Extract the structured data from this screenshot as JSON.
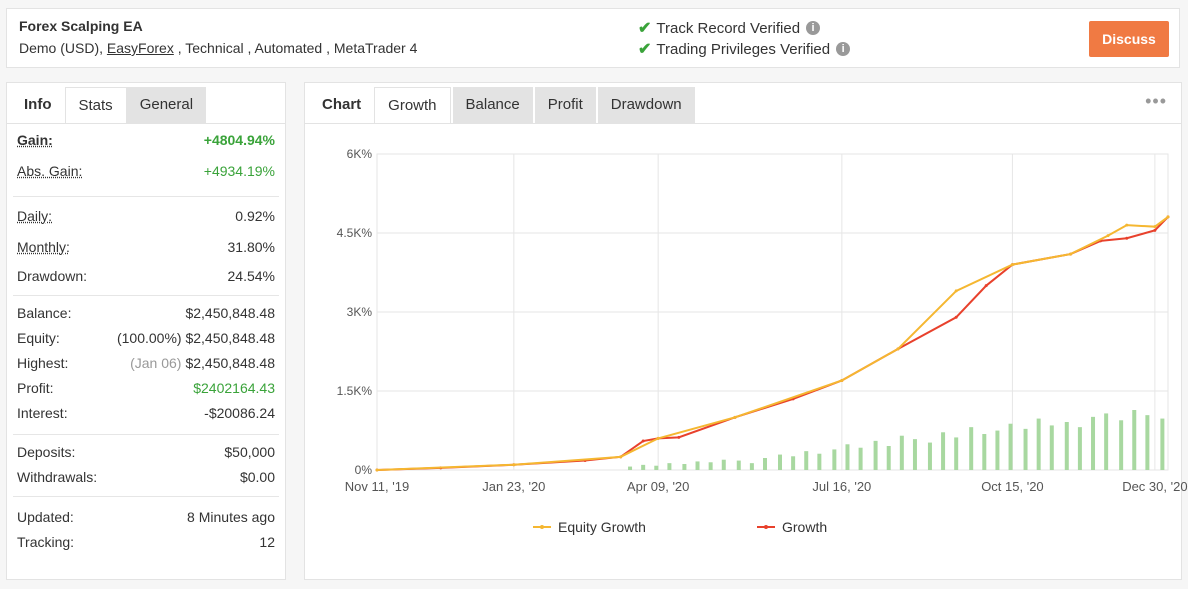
{
  "header": {
    "system_name": "Forex Scalping EA",
    "tags_prefix": "Demo (USD), ",
    "broker_link": "EasyForex",
    "tags_suffix": " , Technical , Automated , MetaTrader 4",
    "verifications": [
      {
        "label": "Track Record Verified",
        "icon": "check-icon"
      },
      {
        "label": "Trading Privileges Verified",
        "icon": "check-icon"
      }
    ],
    "discuss_label": "Discuss",
    "discuss_color": "#f07a43"
  },
  "left_tabs": [
    "Info",
    "Stats",
    "General"
  ],
  "stats": {
    "gain": {
      "label": "Gain:",
      "value": "+4804.94%"
    },
    "abs_gain": {
      "label": "Abs. Gain:",
      "value": "+4934.19%"
    },
    "daily": {
      "label": "Daily:",
      "value": "0.92%"
    },
    "monthly": {
      "label": "Monthly:",
      "value": "31.80%"
    },
    "drawdown": {
      "label": "Drawdown:",
      "value": "24.54%"
    },
    "balance": {
      "label": "Balance:",
      "value": "$2,450,848.48"
    },
    "equity": {
      "label": "Equity:",
      "sub": "(100.00%)",
      "value": "$2,450,848.48"
    },
    "highest": {
      "label": "Highest:",
      "sub": "(Jan 06)",
      "value": "$2,450,848.48"
    },
    "profit": {
      "label": "Profit:",
      "value": "$2402164.43"
    },
    "interest": {
      "label": "Interest:",
      "value": "-$20086.24"
    },
    "deposits": {
      "label": "Deposits:",
      "value": "$50,000"
    },
    "withdrawals": {
      "label": "Withdrawals:",
      "value": "$0.00"
    },
    "updated": {
      "label": "Updated:",
      "value": "8 Minutes ago"
    },
    "tracking": {
      "label": "Tracking:",
      "value": "12"
    }
  },
  "chart_tabs": [
    "Chart",
    "Growth",
    "Balance",
    "Profit",
    "Drawdown"
  ],
  "more_icon": "more-dots-icon",
  "colors": {
    "positive": "#3aa33a",
    "growth": "#e8412c",
    "equity": "#f5b731",
    "bars": "#a8d8a0",
    "grid": "#e6e6e6"
  },
  "chart_data": {
    "type": "line",
    "title": "",
    "xlabel": "",
    "ylabel": "",
    "y_tick_labels": [
      "0%",
      "1.5K%",
      "3K%",
      "4.5K%",
      "6K%"
    ],
    "y_ticks": [
      0,
      1500,
      3000,
      4500,
      6000
    ],
    "ylim": [
      0,
      6000
    ],
    "x_tick_labels": [
      "Nov 11, '19",
      "Jan 23, '20",
      "Apr 09, '20",
      "Jul 16, '20",
      "Oct 15, '20",
      "Dec 30, '20"
    ],
    "x_ticks": [
      "2019-11-11",
      "2020-01-23",
      "2020-04-09",
      "2020-07-16",
      "2020-10-15",
      "2020-12-30"
    ],
    "xlim": [
      "2019-11-11",
      "2021-01-06"
    ],
    "grid": true,
    "legend_position": "bottom",
    "series": [
      {
        "name": "Equity Growth",
        "color": "#f5b731",
        "x": [
          "2019-11-11",
          "2020-01-23",
          "2020-03-20",
          "2020-04-09",
          "2020-05-20",
          "2020-07-16",
          "2020-08-15",
          "2020-09-15",
          "2020-10-15",
          "2020-11-15",
          "2020-12-05",
          "2020-12-15",
          "2020-12-30",
          "2021-01-06"
        ],
        "y": [
          0,
          100,
          250,
          600,
          1000,
          1700,
          2300,
          3400,
          3900,
          4100,
          4450,
          4650,
          4620,
          4805
        ]
      },
      {
        "name": "Growth",
        "color": "#e8412c",
        "x": [
          "2019-11-11",
          "2019-12-15",
          "2020-01-23",
          "2020-03-01",
          "2020-03-20",
          "2020-04-01",
          "2020-04-09",
          "2020-04-20",
          "2020-05-20",
          "2020-06-20",
          "2020-07-16",
          "2020-08-15",
          "2020-09-15",
          "2020-10-01",
          "2020-10-15",
          "2020-11-15",
          "2020-12-01",
          "2020-12-15",
          "2020-12-30",
          "2021-01-06"
        ],
        "y": [
          0,
          40,
          100,
          180,
          250,
          550,
          600,
          620,
          1000,
          1350,
          1700,
          2300,
          2900,
          3500,
          3900,
          4100,
          4350,
          4400,
          4550,
          4805
        ]
      }
    ],
    "profit_bars_note": "daily profit bars (unscaled)",
    "profit_bars": [
      20,
      30,
      25,
      40,
      35,
      50,
      45,
      60,
      55,
      40,
      70,
      90,
      80,
      110,
      95,
      120,
      150,
      130,
      170,
      140,
      200,
      180,
      160,
      220,
      190,
      250,
      210,
      230,
      270,
      240,
      300,
      260,
      280,
      250,
      310,
      330,
      290,
      350,
      320,
      300
    ]
  }
}
